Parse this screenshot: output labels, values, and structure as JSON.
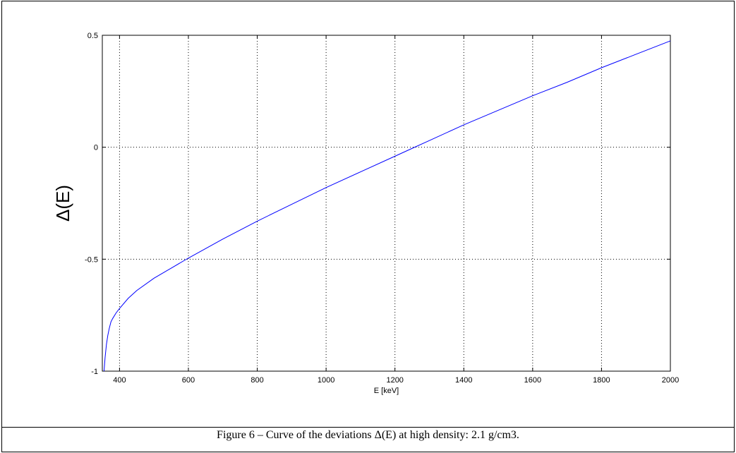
{
  "caption": "Figure 6 – Curve of the deviations Δ(E) at high density: 2.1 g/cm3.",
  "chart_data": {
    "type": "line",
    "title": "",
    "xlabel": "E [keV]",
    "ylabel": "Δ(E)",
    "xlim": [
      350,
      2000
    ],
    "ylim": [
      -1,
      0.5
    ],
    "xticks": [
      400,
      600,
      800,
      1000,
      1200,
      1400,
      1600,
      1800,
      2000
    ],
    "xtick_labels": [
      "400",
      "600",
      "800",
      "1000",
      "1200",
      "1400",
      "1600",
      "1800",
      "2000"
    ],
    "yticks": [
      -1,
      -0.5,
      0,
      0.5
    ],
    "ytick_labels": [
      "-1",
      "-0.5",
      "0",
      "0.5"
    ],
    "grid": true,
    "line_color": "#0000ff",
    "series": [
      {
        "x": [
          355,
          358,
          362,
          366,
          370,
          375,
          380,
          390,
          400,
          425,
          450,
          500,
          550,
          600,
          700,
          800,
          900,
          1000,
          1100,
          1200,
          1250,
          1300,
          1400,
          1500,
          1600,
          1700,
          1800,
          1900,
          2000
        ],
        "y": [
          -1.0,
          -0.94,
          -0.88,
          -0.84,
          -0.81,
          -0.78,
          -0.765,
          -0.74,
          -0.72,
          -0.675,
          -0.64,
          -0.585,
          -0.54,
          -0.495,
          -0.41,
          -0.33,
          -0.255,
          -0.18,
          -0.11,
          -0.04,
          -0.005,
          0.03,
          0.1,
          0.165,
          0.23,
          0.29,
          0.355,
          0.415,
          0.475
        ]
      }
    ]
  }
}
